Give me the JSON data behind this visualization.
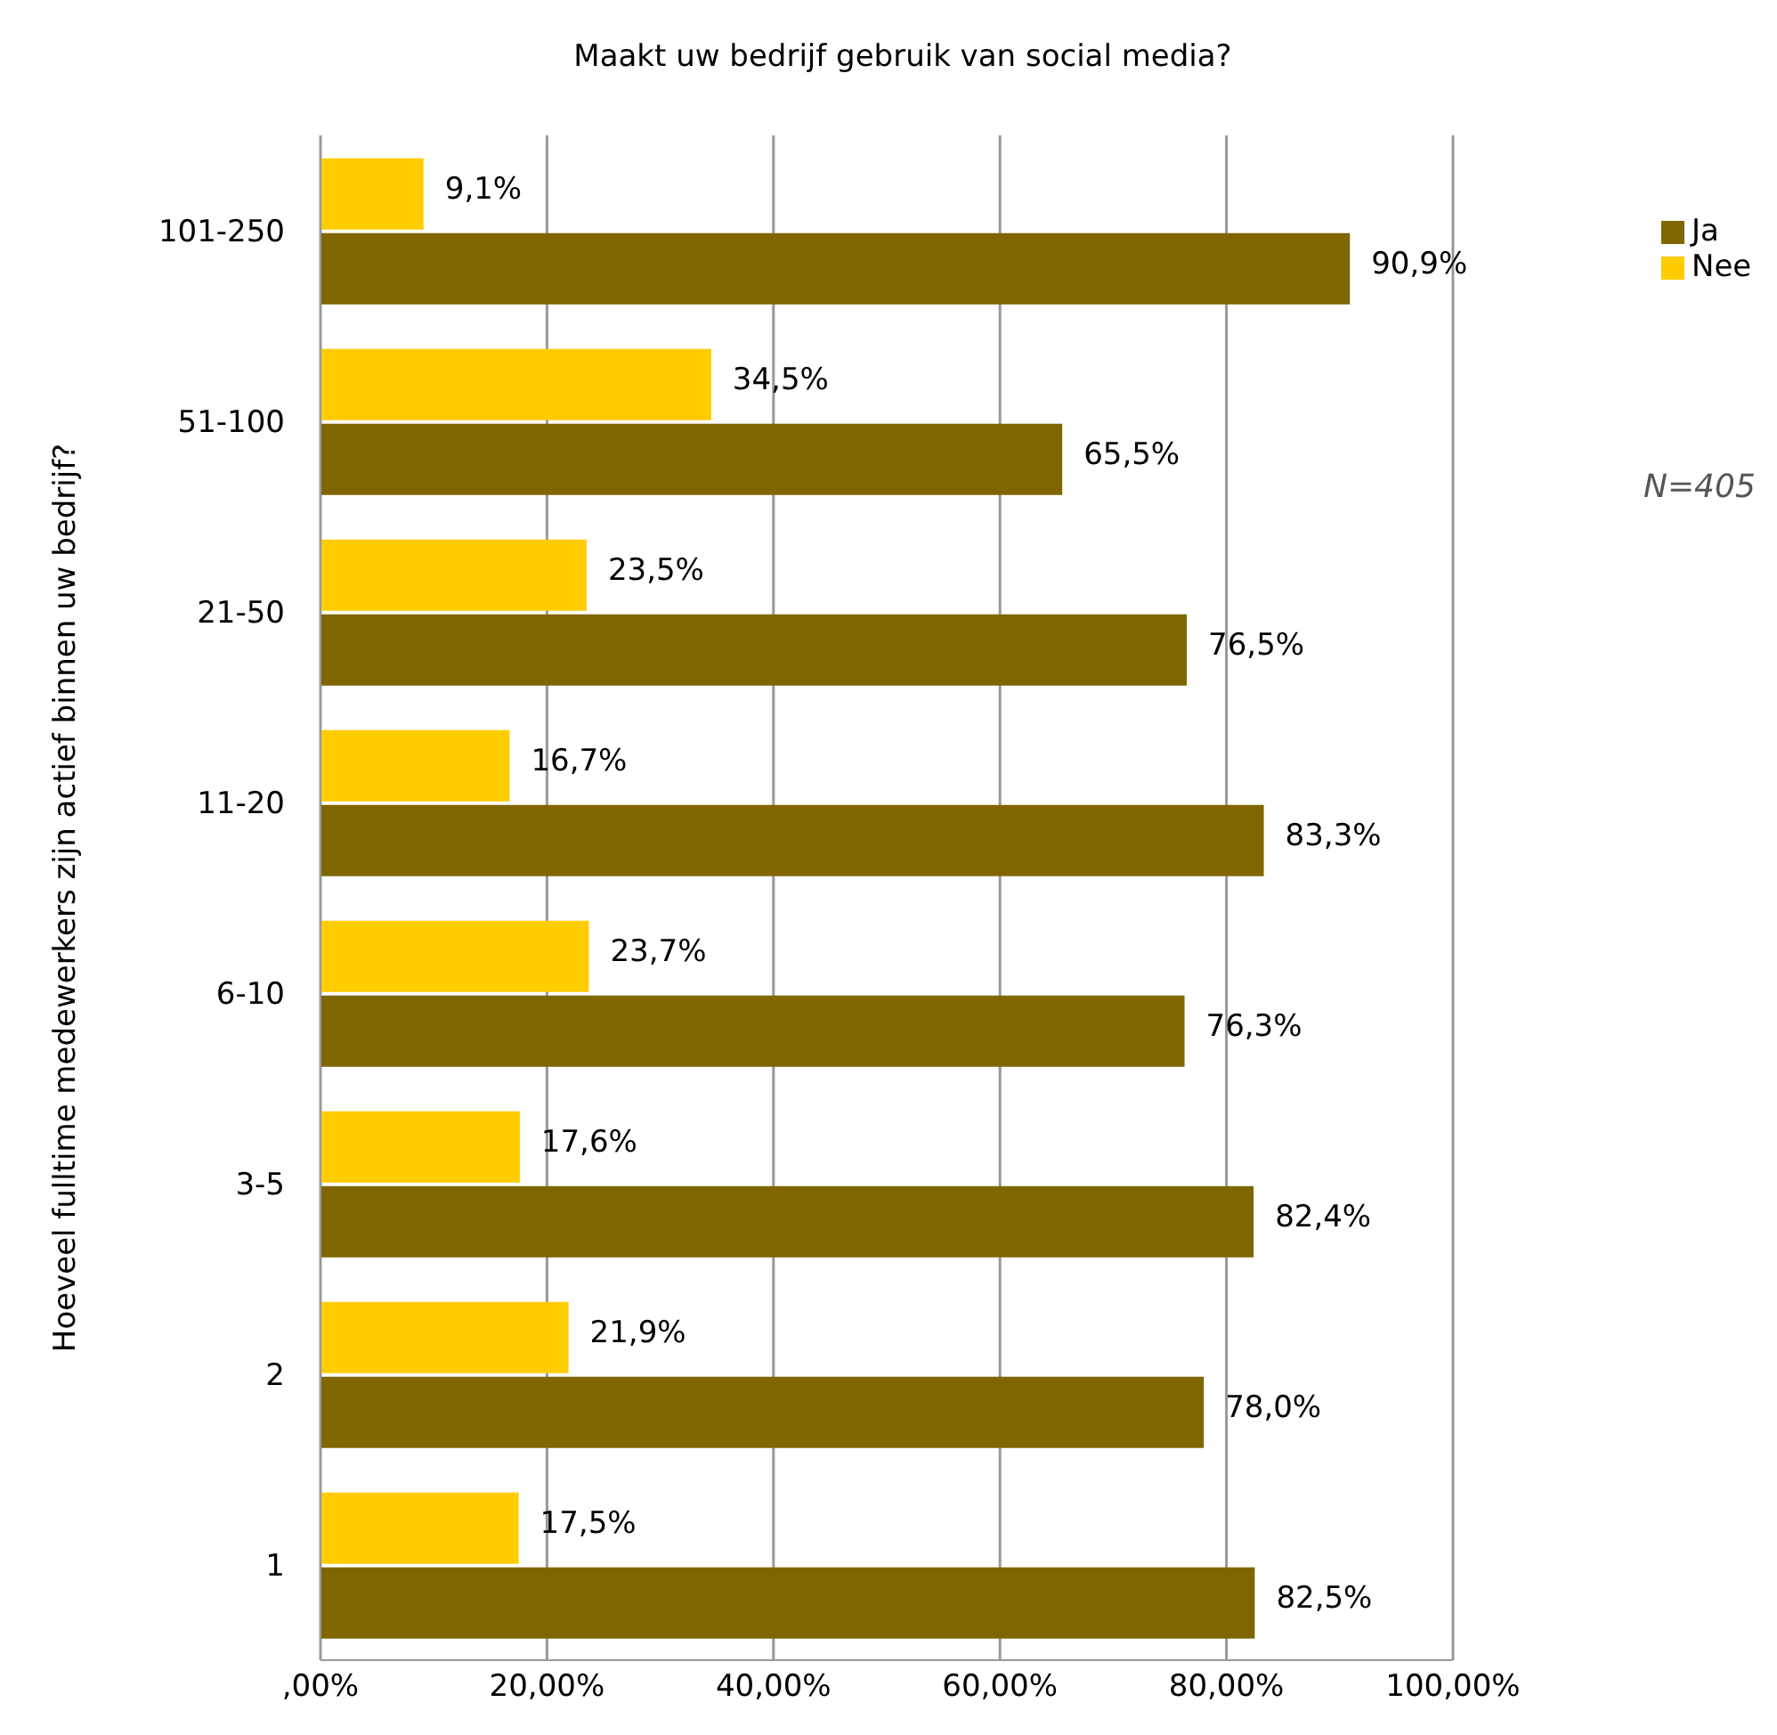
{
  "chart_data": {
    "type": "bar",
    "orientation": "horizontal",
    "title": "Maakt uw bedrijf gebruik van social media?",
    "ylabel": "Hoeveel fulltime medewerkers zijn actief binnen uw bedrijf?",
    "categories": [
      "101-250",
      "51-100",
      "21-50",
      "11-20",
      "6-10",
      "3-5",
      "2",
      "1"
    ],
    "series": [
      {
        "name": "Nee",
        "color": "#ffcc00",
        "values": [
          9.1,
          34.5,
          23.5,
          16.7,
          23.7,
          17.6,
          21.9,
          17.5
        ],
        "value_labels": [
          "9,1%",
          "34,5%",
          "23,5%",
          "16,7%",
          "23,7%",
          "17,6%",
          "21,9%",
          "17,5%"
        ]
      },
      {
        "name": "Ja",
        "color": "#806600",
        "values": [
          90.9,
          65.5,
          76.5,
          83.3,
          76.3,
          82.4,
          78.0,
          82.5
        ],
        "value_labels": [
          "90,9%",
          "65,5%",
          "76,5%",
          "83,3%",
          "76,3%",
          "82,4%",
          "78,0%",
          "82,5%"
        ]
      }
    ],
    "xlim": [
      0,
      100
    ],
    "xticks": [
      {
        "value": 0,
        "label": ",00%"
      },
      {
        "value": 20,
        "label": "20,00%"
      },
      {
        "value": 40,
        "label": "40,00%"
      },
      {
        "value": 60,
        "label": "60,00%"
      },
      {
        "value": 80,
        "label": "80,00%"
      },
      {
        "value": 100,
        "label": "100,00%"
      }
    ],
    "grid": "x",
    "legend": "right",
    "annotations": [
      "N=405"
    ]
  }
}
